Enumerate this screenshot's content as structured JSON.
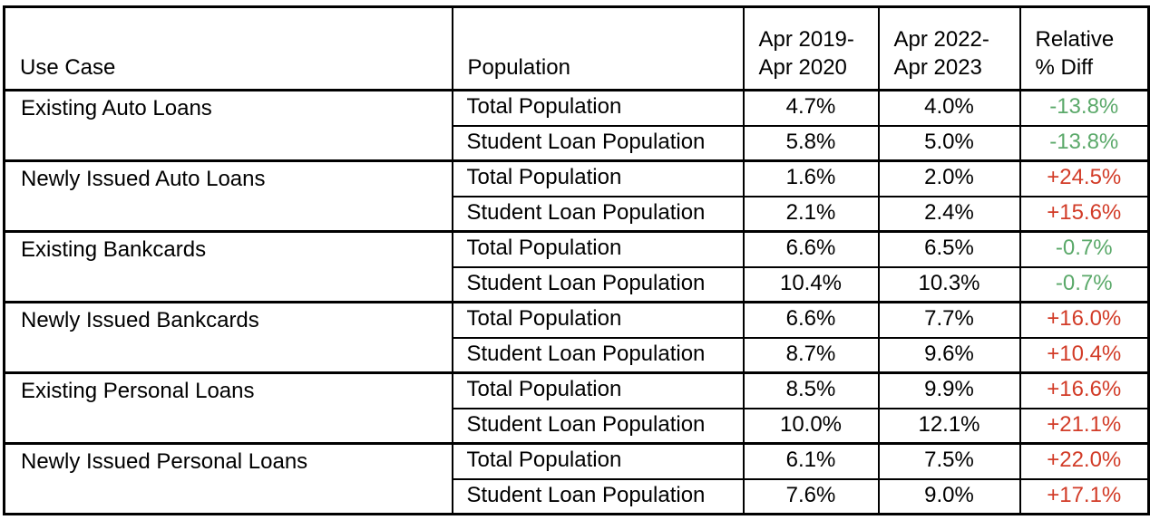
{
  "colors": {
    "positive_diff": "#d23c28",
    "negative_diff": "#5ba96a",
    "border": "#000000",
    "background": "#ffffff",
    "text": "#000000"
  },
  "table": {
    "headers": [
      "Use Case",
      "Population",
      "Apr 2019-\nApr 2020",
      "Apr 2022-\nApr 2023",
      "Relative\n% Diff"
    ],
    "groups": [
      {
        "use_case": "Existing Auto Loans",
        "rows": [
          {
            "population": "Total Population",
            "period1": "4.7%",
            "period2": "4.0%",
            "diff": "-13.8%",
            "direction": "negative"
          },
          {
            "population": "Student Loan Population",
            "period1": "5.8%",
            "period2": "5.0%",
            "diff": "-13.8%",
            "direction": "negative"
          }
        ]
      },
      {
        "use_case": "Newly Issued Auto Loans",
        "rows": [
          {
            "population": "Total Population",
            "period1": "1.6%",
            "period2": "2.0%",
            "diff": "+24.5%",
            "direction": "positive"
          },
          {
            "population": "Student Loan Population",
            "period1": "2.1%",
            "period2": "2.4%",
            "diff": "+15.6%",
            "direction": "positive"
          }
        ]
      },
      {
        "use_case": "Existing Bankcards",
        "rows": [
          {
            "population": "Total Population",
            "period1": "6.6%",
            "period2": "6.5%",
            "diff": "-0.7%",
            "direction": "negative"
          },
          {
            "population": "Student Loan Population",
            "period1": "10.4%",
            "period2": "10.3%",
            "diff": "-0.7%",
            "direction": "negative"
          }
        ]
      },
      {
        "use_case": "Newly Issued Bankcards",
        "rows": [
          {
            "population": "Total Population",
            "period1": "6.6%",
            "period2": "7.7%",
            "diff": "+16.0%",
            "direction": "positive"
          },
          {
            "population": "Student Loan Population",
            "period1": "8.7%",
            "period2": "9.6%",
            "diff": "+10.4%",
            "direction": "positive"
          }
        ]
      },
      {
        "use_case": "Existing Personal Loans",
        "rows": [
          {
            "population": "Total Population",
            "period1": "8.5%",
            "period2": "9.9%",
            "diff": "+16.6%",
            "direction": "positive"
          },
          {
            "population": "Student Loan Population",
            "period1": "10.0%",
            "period2": "12.1%",
            "diff": "+21.1%",
            "direction": "positive"
          }
        ]
      },
      {
        "use_case": "Newly Issued Personal Loans",
        "rows": [
          {
            "population": "Total Population",
            "period1": "6.1%",
            "period2": "7.5%",
            "diff": "+22.0%",
            "direction": "positive"
          },
          {
            "population": "Student Loan Population",
            "period1": "7.6%",
            "period2": "9.0%",
            "diff": "+17.1%",
            "direction": "positive"
          }
        ]
      }
    ]
  },
  "chart_data": {
    "type": "table",
    "columns": [
      "Use Case",
      "Population",
      "Apr 2019-Apr 2020",
      "Apr 2022-Apr 2023",
      "Relative % Diff"
    ],
    "rows": [
      [
        "Existing Auto Loans",
        "Total Population",
        4.7,
        4.0,
        -13.8
      ],
      [
        "Existing Auto Loans",
        "Student Loan Population",
        5.8,
        5.0,
        -13.8
      ],
      [
        "Newly Issued Auto Loans",
        "Total Population",
        1.6,
        2.0,
        24.5
      ],
      [
        "Newly Issued Auto Loans",
        "Student Loan Population",
        2.1,
        2.4,
        15.6
      ],
      [
        "Existing Bankcards",
        "Total Population",
        6.6,
        6.5,
        -0.7
      ],
      [
        "Existing Bankcards",
        "Student Loan Population",
        10.4,
        10.3,
        -0.7
      ],
      [
        "Newly Issued Bankcards",
        "Total Population",
        6.6,
        7.7,
        16.0
      ],
      [
        "Newly Issued Bankcards",
        "Student Loan Population",
        8.7,
        9.6,
        10.4
      ],
      [
        "Existing Personal Loans",
        "Total Population",
        8.5,
        9.9,
        16.6
      ],
      [
        "Existing Personal Loans",
        "Student Loan Population",
        10.0,
        12.1,
        21.1
      ],
      [
        "Newly Issued Personal Loans",
        "Total Population",
        6.1,
        7.5,
        22.0
      ],
      [
        "Newly Issued Personal Loans",
        "Student Loan Population",
        7.6,
        9.0,
        17.1
      ]
    ],
    "value_unit": "%",
    "notes": "Relative % Diff shown green when negative, red when positive"
  }
}
